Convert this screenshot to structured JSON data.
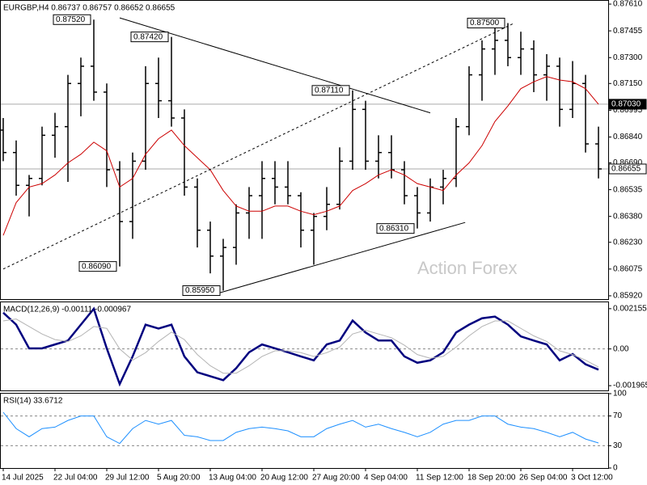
{
  "chart_data": [
    {
      "type": "ohlc",
      "title": "EURGBP,H4  0.86737 0.86757 0.86652 0.86655",
      "color": "#000000",
      "categories": [
        "14 Jul 2025",
        null,
        null,
        null,
        "22 Jul 04:00",
        null,
        null,
        null,
        "29 Jul 12:00",
        null,
        null,
        null,
        "5 Aug 20:00",
        null,
        null,
        null,
        "13 Aug 04:00",
        null,
        null,
        null,
        "20 Aug 12:00",
        null,
        null,
        null,
        "27 Aug 20:00",
        null,
        null,
        null,
        "4 Sep 04:00",
        null,
        null,
        null,
        "11 Sep 12:00",
        null,
        null,
        null,
        "18 Sep 20:00",
        null,
        null,
        null,
        "26 Sep 04:00",
        null,
        null,
        null,
        "3 Oct 12:00",
        null,
        null
      ],
      "open": [
        0.8688,
        0.8675,
        0.8656,
        0.866,
        0.8685,
        0.869,
        0.8715,
        0.8725,
        0.871,
        0.8665,
        0.8635,
        0.867,
        0.8715,
        0.8705,
        0.8695,
        0.8655,
        0.863,
        0.8615,
        0.862,
        0.864,
        0.865,
        0.866,
        0.8655,
        0.865,
        0.863,
        0.8638,
        0.8645,
        0.867,
        0.87,
        0.867,
        0.8675,
        0.8665,
        0.865,
        0.864,
        0.8655,
        0.866,
        0.869,
        0.872,
        0.8735,
        0.874,
        0.873,
        0.8735,
        0.872,
        0.8725,
        0.87,
        0.8715,
        0.868
      ],
      "high": [
        0.8695,
        0.8682,
        0.8662,
        0.869,
        0.8698,
        0.872,
        0.873,
        0.8752,
        0.8715,
        0.867,
        0.8675,
        0.8725,
        0.873,
        0.8742,
        0.87,
        0.866,
        0.8635,
        0.8625,
        0.8645,
        0.8655,
        0.867,
        0.867,
        0.867,
        0.8652,
        0.864,
        0.8655,
        0.8678,
        0.8711,
        0.8705,
        0.8685,
        0.8685,
        0.867,
        0.8655,
        0.866,
        0.8665,
        0.8695,
        0.8725,
        0.874,
        0.8748,
        0.875,
        0.8745,
        0.874,
        0.8732,
        0.873,
        0.8728,
        0.872,
        0.869
      ],
      "low": [
        0.867,
        0.865,
        0.8638,
        0.8656,
        0.8672,
        0.8658,
        0.8696,
        0.8705,
        0.8655,
        0.8609,
        0.8625,
        0.8665,
        0.8695,
        0.869,
        0.865,
        0.862,
        0.8605,
        0.8595,
        0.861,
        0.8625,
        0.8625,
        0.8645,
        0.8645,
        0.862,
        0.861,
        0.863,
        0.8642,
        0.8665,
        0.8665,
        0.866,
        0.866,
        0.8645,
        0.8631,
        0.8635,
        0.8645,
        0.8655,
        0.8685,
        0.8705,
        0.872,
        0.8725,
        0.872,
        0.871,
        0.8705,
        0.869,
        0.8695,
        0.8675,
        0.866
      ],
      "close": [
        0.8675,
        0.8656,
        0.866,
        0.8685,
        0.869,
        0.8715,
        0.8725,
        0.871,
        0.8665,
        0.8635,
        0.867,
        0.8715,
        0.8705,
        0.8695,
        0.8655,
        0.863,
        0.8615,
        0.862,
        0.864,
        0.865,
        0.866,
        0.8655,
        0.865,
        0.863,
        0.8638,
        0.8645,
        0.867,
        0.87,
        0.867,
        0.8675,
        0.8665,
        0.865,
        0.864,
        0.8655,
        0.866,
        0.869,
        0.872,
        0.8735,
        0.874,
        0.873,
        0.8735,
        0.872,
        0.8725,
        0.87,
        0.8715,
        0.868,
        0.86655
      ],
      "ma": {
        "color": "#cc0000",
        "values": [
          0.8627,
          0.8646,
          0.8655,
          0.8657,
          0.8662,
          0.8669,
          0.8674,
          0.8681,
          0.8676,
          0.8655,
          0.866,
          0.8674,
          0.8683,
          0.8688,
          0.8679,
          0.8672,
          0.8665,
          0.8653,
          0.8644,
          0.8641,
          0.8641,
          0.8644,
          0.8644,
          0.8641,
          0.8639,
          0.8641,
          0.8644,
          0.8653,
          0.8657,
          0.8662,
          0.8665,
          0.8662,
          0.8657,
          0.8655,
          0.8653,
          0.8662,
          0.8669,
          0.8679,
          0.8693,
          0.8702,
          0.8712,
          0.8716,
          0.8719,
          0.8717,
          0.8716,
          0.8712,
          0.8703
        ]
      },
      "ylim": [
        0.85901,
        0.87629
      ],
      "yticks": [
        {
          "value": 0.8761,
          "label": "0.87610"
        },
        0.87455,
        {
          "value": 0.873,
          "label": "0.87300"
        },
        {
          "value": 0.8715,
          "label": "0.87150"
        },
        0.86995,
        {
          "value": 0.8684,
          "label": "0.86840"
        },
        {
          "value": 0.8669,
          "label": "0.86690"
        },
        0.86535,
        {
          "value": 0.8638,
          "label": "0.86380"
        },
        {
          "value": 0.8623,
          "label": "0.86230"
        },
        0.86075,
        {
          "value": 0.8592,
          "label": "0.85920"
        }
      ],
      "marker_lines": [
        {
          "value": 0.8703,
          "label": "0.87030",
          "color": "#000000"
        },
        {
          "value": 0.86655,
          "label": "0.86655",
          "color": "#ffffff"
        }
      ],
      "annotations": [
        {
          "x": 7,
          "value": 0.8752,
          "label": "0.87520"
        },
        {
          "x": 13,
          "value": 0.8742,
          "label": "0.87420"
        },
        {
          "x": 9,
          "value": 0.8609,
          "label": "0.86090"
        },
        {
          "x": 17,
          "value": 0.8595,
          "label": "0.85950"
        },
        {
          "x": 27,
          "value": 0.8711,
          "label": "0.87110"
        },
        {
          "x": 32,
          "value": 0.8631,
          "label": "0.86310"
        },
        {
          "x": 39,
          "value": 0.875,
          "label": "0.87500"
        }
      ],
      "trendlines": [
        {
          "x": [
            9,
            33
          ],
          "y": [
            0.8753,
            0.8698
          ],
          "dashed": false
        },
        {
          "x": [
            0,
            39.5
          ],
          "y": [
            0.86075,
            0.875
          ],
          "dashed": true
        },
        {
          "x": [
            16.75,
            35.7
          ],
          "y": [
            0.85938,
            0.86345
          ],
          "dashed": false
        }
      ],
      "watermark": "Action Forex"
    },
    {
      "type": "line",
      "title": "MACD(12,26,9) -0.00111 -0.000967",
      "series": [
        {
          "color": "#00007f",
          "width": 2.5,
          "values": [
            0.00194,
            0.0013,
            3e-05,
            3e-05,
            0.00024,
            0.00045,
            0.0013,
            0.00215,
            3e-05,
            -0.00188,
            -0.0004,
            0.0013,
            0.00109,
            0.0013,
            -0.0004,
            -0.00125,
            -0.00146,
            -0.00167,
            -0.00103,
            -0.00018,
            0.00024,
            3e-05,
            -0.00018,
            -0.0004,
            -0.00061,
            0.00024,
            0.00045,
            0.00152,
            0.00088,
            0.00045,
            0.00045,
            -0.0004,
            -0.00074,
            -0.00061,
            -0.00018,
            0.00088,
            0.0013,
            0.00164,
            0.00173,
            0.0013,
            0.00067,
            0.00045,
            0.00024,
            -0.00061,
            -0.00027,
            -0.00082,
            -0.00111
          ]
        },
        {
          "color": "#b4b4b4",
          "width": 1,
          "values": [
            0.0015,
            0.0016,
            0.0012,
            0.0008,
            0.0005,
            0.0004,
            0.0007,
            0.0012,
            0.0011,
            0,
            -0.0006,
            -0.0002,
            0.0004,
            0.0009,
            0.0005,
            -0.0003,
            -0.0009,
            -0.0013,
            -0.0013,
            -0.0009,
            -0.0004,
            -0.0001,
            -0.0001,
            -0.0002,
            -0.0004,
            -0.0002,
            0.0001,
            0.0008,
            0.001,
            0.0008,
            0.0006,
            0.0002,
            -0.0003,
            -0.0005,
            -0.0004,
            0.0001,
            0.0007,
            0.0012,
            0.0015,
            0.0015,
            0.0011,
            0.0007,
            0.0004,
            -0.0001,
            -0.0003,
            -0.0006,
            -0.000967
          ]
        }
      ],
      "ylim": [
        -0.00222,
        0.002495
      ],
      "yticks": [
        0.002155,
        {
          "value": 0,
          "label": "0.00"
        },
        -0.001965
      ],
      "levels": [
        0
      ]
    },
    {
      "type": "line",
      "title": "RSI(14) 33.6712",
      "series": [
        {
          "color": "#1e90ff",
          "width": 1,
          "values": [
            75,
            53,
            42,
            53,
            55,
            64,
            70,
            70,
            42,
            33,
            53,
            64,
            59,
            64,
            44,
            42,
            37,
            37,
            48,
            53,
            55,
            53,
            50,
            42,
            42,
            53,
            59,
            64,
            55,
            59,
            53,
            48,
            42,
            48,
            59,
            64,
            64,
            70,
            70,
            59,
            55,
            53,
            48,
            42,
            48,
            39,
            33.6712
          ]
        }
      ],
      "ylim": [
        0,
        100
      ],
      "yticks": [
        100,
        70,
        30,
        0
      ],
      "levels": [
        70,
        30
      ]
    }
  ]
}
